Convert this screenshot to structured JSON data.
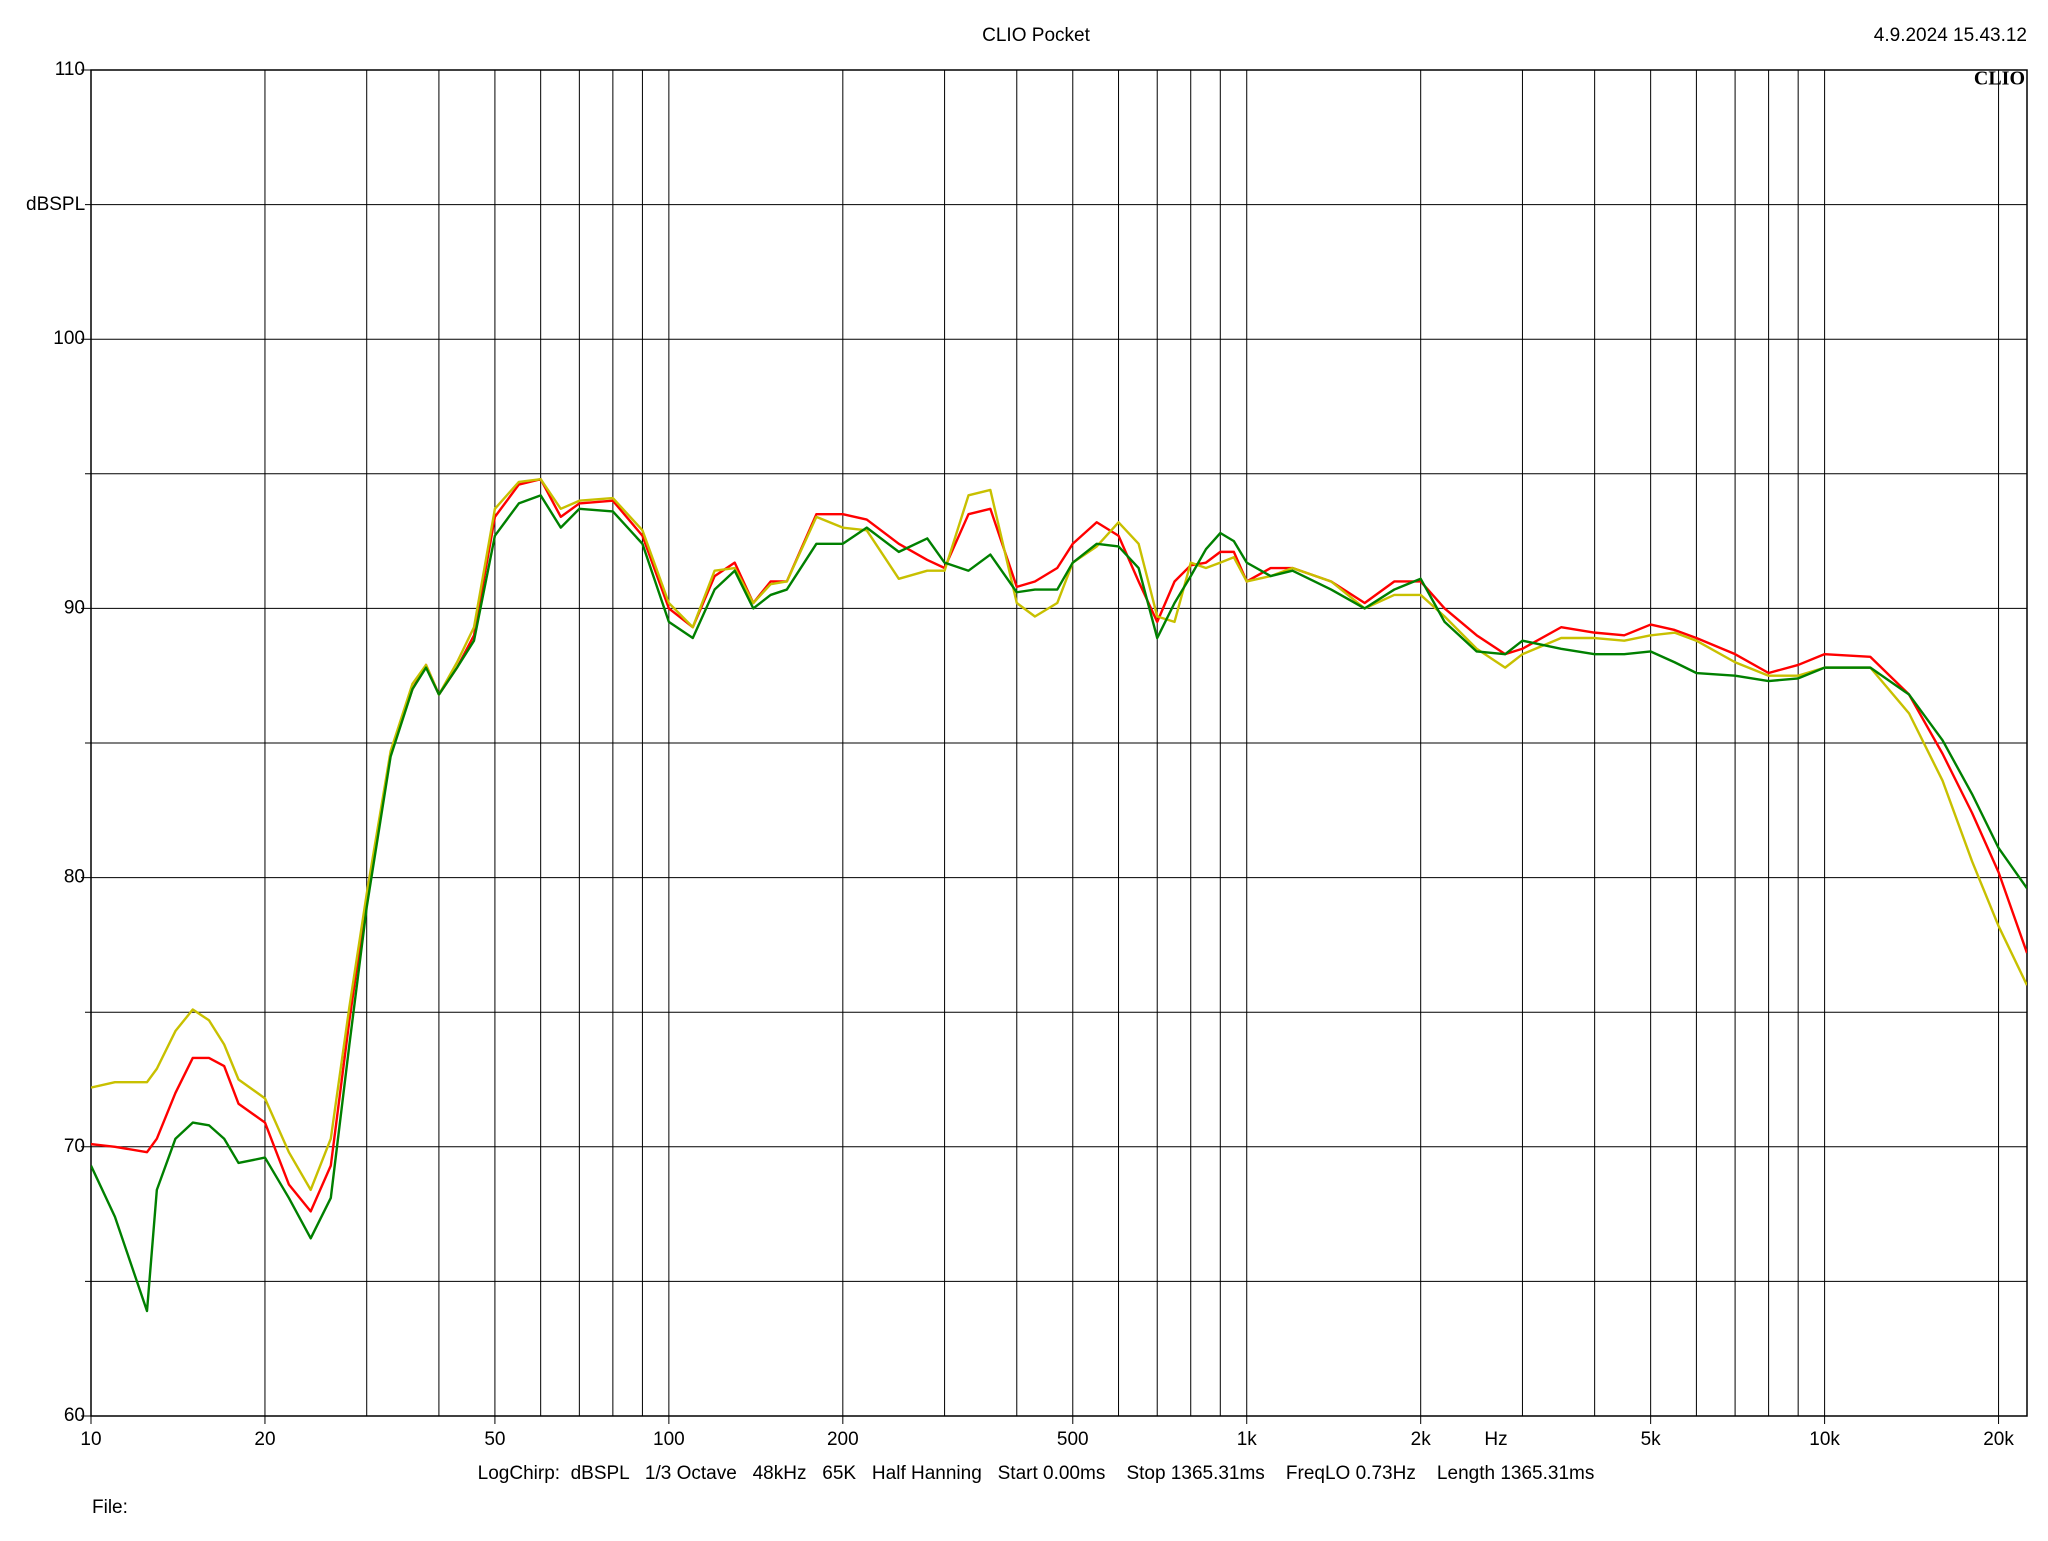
{
  "chart_data": {
    "type": "line",
    "title": "CLIO Pocket",
    "timestamp": "4.9.2024 15.43.12",
    "logo": "CLIO",
    "ylabel": "dBSPL",
    "xlabel": "Hz",
    "footer": "LogChirp:  dBSPL   1/3 Octave   48kHz   65K   Half Hanning   Start 0.00ms    Stop 1365.31ms    FreqLO 0.73Hz    Length 1365.31ms",
    "file_label": "File:",
    "log_x": true,
    "grid": true,
    "xlim": [
      10,
      22400
    ],
    "ylim": [
      60,
      110
    ],
    "xticks": [
      10,
      20,
      50,
      100,
      200,
      500,
      {
        "value": 1000,
        "label": "1k"
      },
      {
        "value": 2000,
        "label": "2k"
      },
      {
        "value": 5000,
        "label": "5k"
      },
      {
        "value": 10000,
        "label": "10k"
      },
      {
        "value": 20000,
        "label": "20k"
      }
    ],
    "minor_xticks": [
      30,
      40,
      60,
      70,
      80,
      90,
      300,
      400,
      600,
      700,
      800,
      900,
      3000,
      4000,
      6000,
      7000,
      8000,
      9000
    ],
    "yticks": [
      60,
      70,
      80,
      90,
      100,
      110
    ],
    "minor_yticks": [
      65,
      75,
      85,
      95,
      105
    ],
    "x": [
      10,
      11,
      12.5,
      13,
      14,
      15,
      16,
      17,
      18,
      20,
      22,
      24,
      26,
      28,
      30,
      33,
      36,
      38,
      40,
      43,
      46,
      50,
      55,
      60,
      65,
      70,
      80,
      90,
      100,
      110,
      120,
      130,
      140,
      150,
      160,
      180,
      200,
      220,
      250,
      280,
      300,
      330,
      360,
      400,
      430,
      470,
      500,
      550,
      600,
      650,
      700,
      750,
      800,
      850,
      900,
      950,
      1000,
      1100,
      1200,
      1400,
      1600,
      1800,
      2000,
      2200,
      2500,
      2800,
      3000,
      3500,
      4000,
      4500,
      5000,
      5500,
      6000,
      7000,
      8000,
      9000,
      10000,
      12000,
      14000,
      16000,
      18000,
      20000,
      22400
    ],
    "series": [
      {
        "color": "#ff0000",
        "values": [
          70.1,
          70.0,
          69.8,
          70.3,
          72.0,
          73.3,
          73.3,
          73.0,
          71.6,
          70.9,
          68.6,
          67.6,
          69.3,
          74.7,
          79.2,
          84.6,
          87.0,
          87.9,
          86.8,
          87.8,
          89.0,
          93.4,
          94.6,
          94.8,
          93.4,
          93.9,
          94.0,
          92.7,
          90.0,
          89.3,
          91.2,
          91.7,
          90.2,
          91.0,
          91.0,
          93.5,
          93.5,
          93.3,
          92.4,
          91.8,
          91.5,
          93.5,
          93.7,
          90.8,
          91.0,
          91.5,
          92.4,
          93.2,
          92.7,
          91.0,
          89.5,
          91.0,
          91.6,
          91.7,
          92.1,
          92.1,
          91.0,
          91.5,
          91.5,
          91.0,
          90.2,
          91.0,
          91.0,
          90.0,
          89.0,
          88.3,
          88.5,
          89.3,
          89.1,
          89.0,
          89.4,
          89.2,
          88.9,
          88.3,
          87.6,
          87.9,
          88.3,
          88.2,
          86.8,
          84.6,
          82.4,
          80.2,
          77.2
        ]
      },
      {
        "color": "#c8c000",
        "values": [
          72.2,
          72.4,
          72.4,
          72.9,
          74.3,
          75.1,
          74.7,
          73.8,
          72.5,
          71.8,
          69.8,
          68.4,
          70.3,
          75.2,
          79.4,
          84.7,
          87.2,
          87.9,
          86.8,
          88.0,
          89.3,
          93.7,
          94.7,
          94.8,
          93.7,
          94.0,
          94.1,
          92.9,
          90.2,
          89.3,
          91.4,
          91.5,
          90.2,
          90.9,
          91.0,
          93.4,
          93.0,
          92.9,
          91.1,
          91.4,
          91.4,
          94.2,
          94.4,
          90.2,
          89.7,
          90.2,
          91.7,
          92.3,
          93.2,
          92.4,
          89.7,
          89.5,
          91.7,
          91.5,
          91.7,
          91.9,
          91.0,
          91.2,
          91.5,
          91.0,
          90.0,
          90.5,
          90.5,
          89.7,
          88.5,
          87.8,
          88.3,
          88.9,
          88.9,
          88.8,
          89.0,
          89.1,
          88.8,
          88.0,
          87.5,
          87.5,
          87.8,
          87.8,
          86.1,
          83.6,
          80.6,
          78.2,
          76.0
        ]
      },
      {
        "color": "#008000",
        "values": [
          69.3,
          67.4,
          63.9,
          68.4,
          70.3,
          70.9,
          70.8,
          70.3,
          69.4,
          69.6,
          68.1,
          66.6,
          68.1,
          73.8,
          78.9,
          84.5,
          87.0,
          87.8,
          86.8,
          87.8,
          88.8,
          92.7,
          93.9,
          94.2,
          93.0,
          93.7,
          93.6,
          92.4,
          89.5,
          88.9,
          90.7,
          91.4,
          90.0,
          90.5,
          90.7,
          92.4,
          92.4,
          93.0,
          92.1,
          92.6,
          91.7,
          91.4,
          92.0,
          90.6,
          90.7,
          90.7,
          91.7,
          92.4,
          92.3,
          91.5,
          88.9,
          90.2,
          91.2,
          92.2,
          92.8,
          92.5,
          91.7,
          91.2,
          91.4,
          90.7,
          90.0,
          90.7,
          91.1,
          89.5,
          88.4,
          88.3,
          88.8,
          88.5,
          88.3,
          88.3,
          88.4,
          88.0,
          87.6,
          87.5,
          87.3,
          87.4,
          87.8,
          87.8,
          86.8,
          85.1,
          83.1,
          81.1,
          79.6
        ]
      }
    ]
  }
}
